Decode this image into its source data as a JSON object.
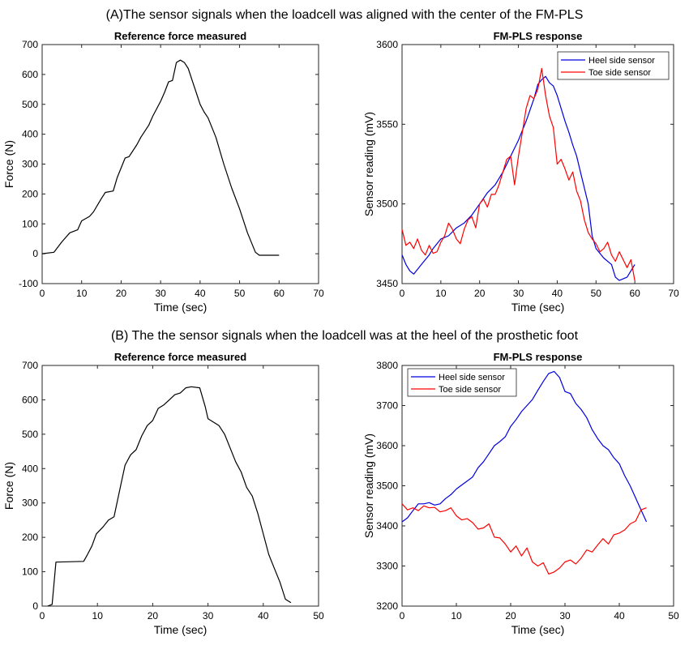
{
  "section_titles": {
    "a": "(A)The sensor signals when the loadcell was aligned with the center of the FM-PLS",
    "b": "(B) The the sensor signals when the loadcell was at the heel of the prosthetic foot"
  },
  "colors": {
    "force": "#000000",
    "heel": "#0000e0",
    "toe": "#ff0000"
  },
  "chart_data": [
    {
      "id": "a-force",
      "type": "line",
      "title": "Reference force measured",
      "xlabel": "Time (sec)",
      "ylabel": "Force (N)",
      "xlim": [
        0,
        70
      ],
      "ylim": [
        -100,
        700
      ],
      "xticks": [
        0,
        10,
        20,
        30,
        40,
        50,
        60,
        70
      ],
      "yticks": [
        -100,
        0,
        100,
        200,
        300,
        400,
        500,
        600,
        700
      ],
      "grid": false,
      "series": [
        {
          "color": "#000000",
          "x": [
            0,
            3,
            5,
            7,
            9,
            10,
            12,
            13,
            15,
            16,
            18,
            19,
            21,
            22,
            24,
            25,
            27,
            28,
            30,
            31,
            32,
            33,
            34,
            35,
            36,
            37,
            38,
            39,
            40,
            41,
            42,
            44,
            46,
            48,
            50,
            52,
            54,
            55,
            58,
            60
          ],
          "y": [
            0,
            5,
            40,
            70,
            80,
            110,
            125,
            140,
            185,
            205,
            210,
            255,
            320,
            325,
            365,
            390,
            430,
            460,
            510,
            540,
            575,
            580,
            640,
            648,
            640,
            620,
            580,
            540,
            500,
            475,
            455,
            390,
            300,
            220,
            150,
            70,
            5,
            -5,
            -5,
            -5
          ]
        }
      ]
    },
    {
      "id": "a-plss",
      "type": "line",
      "title": "FM-PLS response",
      "xlabel": "Time (sec)",
      "ylabel": "Sensor reading (mV)",
      "xlim": [
        0,
        70
      ],
      "ylim": [
        3450,
        3600
      ],
      "xticks": [
        0,
        10,
        20,
        30,
        40,
        50,
        60,
        70
      ],
      "yticks": [
        3450,
        3500,
        3550,
        3600
      ],
      "grid": false,
      "legend": "top-right",
      "series": [
        {
          "name": "Heel side sensor",
          "color": "#0000e0",
          "x": [
            0,
            1,
            2,
            3,
            5,
            7,
            8,
            10,
            12,
            14,
            16,
            18,
            20,
            22,
            24,
            26,
            28,
            30,
            32,
            34,
            35,
            36,
            37,
            38,
            39,
            40,
            41,
            42,
            43,
            44,
            45,
            46,
            47,
            48,
            49,
            50,
            52,
            54,
            55,
            56,
            58,
            60
          ],
          "y": [
            3468,
            3462,
            3458,
            3456,
            3462,
            3468,
            3472,
            3478,
            3480,
            3485,
            3488,
            3493,
            3500,
            3507,
            3512,
            3520,
            3530,
            3540,
            3552,
            3566,
            3575,
            3578,
            3580,
            3576,
            3574,
            3568,
            3560,
            3552,
            3545,
            3537,
            3530,
            3520,
            3510,
            3500,
            3480,
            3472,
            3466,
            3462,
            3454,
            3452,
            3454,
            3462
          ]
        },
        {
          "name": "Toe side sensor",
          "color": "#ff0000",
          "x": [
            0,
            1,
            2,
            3,
            4,
            5,
            6,
            7,
            8,
            9,
            10,
            11,
            12,
            13,
            14,
            15,
            16,
            17,
            18,
            19,
            20,
            21,
            22,
            23,
            24,
            25,
            26,
            27,
            28,
            29,
            30,
            31,
            32,
            33,
            34,
            35,
            36,
            37,
            38,
            39,
            40,
            41,
            42,
            43,
            44,
            45,
            46,
            47,
            48,
            49,
            50,
            51,
            52,
            53,
            54,
            55,
            56,
            57,
            58,
            59,
            60
          ],
          "y": [
            3484,
            3474,
            3476,
            3472,
            3478,
            3471,
            3468,
            3474,
            3469,
            3470,
            3476,
            3480,
            3488,
            3484,
            3478,
            3475,
            3484,
            3490,
            3492,
            3485,
            3500,
            3503,
            3498,
            3506,
            3506,
            3512,
            3520,
            3528,
            3530,
            3512,
            3530,
            3545,
            3560,
            3568,
            3566,
            3572,
            3585,
            3568,
            3555,
            3548,
            3525,
            3528,
            3522,
            3515,
            3520,
            3508,
            3502,
            3490,
            3482,
            3478,
            3475,
            3470,
            3472,
            3476,
            3468,
            3464,
            3470,
            3465,
            3460,
            3465,
            3452
          ]
        }
      ]
    },
    {
      "id": "b-force",
      "type": "line",
      "title": "Reference force measured",
      "xlabel": "Time (sec)",
      "ylabel": "Force (N)",
      "xlim": [
        0,
        50
      ],
      "ylim": [
        0,
        700
      ],
      "xticks": [
        0,
        10,
        20,
        30,
        40,
        50
      ],
      "yticks": [
        0,
        100,
        200,
        300,
        400,
        500,
        600,
        700
      ],
      "grid": false,
      "series": [
        {
          "color": "#000000",
          "x": [
            1,
            1.8,
            2.5,
            7.5,
            8.2,
            9,
            9.8,
            11,
            12,
            13,
            14.2,
            15,
            16,
            17,
            18,
            19,
            20,
            21,
            22,
            23,
            24,
            25,
            26,
            27,
            28.5,
            29.5,
            30,
            31,
            32,
            33,
            34,
            35,
            36,
            37,
            38,
            39,
            40,
            41,
            42,
            43,
            44,
            45
          ],
          "y": [
            0,
            5,
            128,
            130,
            150,
            175,
            210,
            230,
            250,
            260,
            350,
            410,
            440,
            455,
            495,
            525,
            540,
            575,
            585,
            600,
            615,
            620,
            635,
            638,
            635,
            580,
            545,
            535,
            525,
            500,
            460,
            420,
            390,
            345,
            320,
            270,
            210,
            150,
            110,
            70,
            20,
            10
          ]
        }
      ]
    },
    {
      "id": "b-plss",
      "type": "line",
      "title": "FM-PLS response",
      "xlabel": "Time (sec)",
      "ylabel": "Sensor reading (mV)",
      "xlim": [
        0,
        50
      ],
      "ylim": [
        3200,
        3800
      ],
      "xticks": [
        0,
        10,
        20,
        30,
        40,
        50
      ],
      "yticks": [
        3200,
        3300,
        3400,
        3500,
        3600,
        3700,
        3800
      ],
      "grid": false,
      "legend": "top-left",
      "series": [
        {
          "name": "Heel side sensor",
          "color": "#0000e0",
          "x": [
            0,
            1,
            2,
            3,
            4,
            5,
            6,
            7,
            8,
            9,
            10,
            11,
            12,
            13,
            14,
            15,
            16,
            17,
            18,
            19,
            20,
            21,
            22,
            23,
            24,
            25,
            26,
            27,
            28,
            29,
            30,
            31,
            32,
            33,
            34,
            35,
            36,
            37,
            38,
            39,
            40,
            41,
            42,
            43,
            44,
            45
          ],
          "y": [
            3410,
            3420,
            3438,
            3455,
            3455,
            3458,
            3452,
            3455,
            3468,
            3478,
            3492,
            3502,
            3512,
            3522,
            3545,
            3560,
            3580,
            3600,
            3610,
            3622,
            3648,
            3665,
            3685,
            3700,
            3715,
            3738,
            3760,
            3780,
            3785,
            3770,
            3735,
            3730,
            3705,
            3690,
            3670,
            3640,
            3618,
            3600,
            3590,
            3570,
            3555,
            3525,
            3500,
            3470,
            3440,
            3410
          ]
        },
        {
          "name": "Toe side sensor",
          "color": "#ff0000",
          "x": [
            0,
            1,
            2,
            3,
            4,
            5,
            6,
            7,
            8,
            9,
            10,
            11,
            12,
            13,
            14,
            15,
            16,
            17,
            18,
            19,
            20,
            21,
            22,
            23,
            24,
            25,
            26,
            27,
            28,
            29,
            30,
            31,
            32,
            33,
            34,
            35,
            36,
            37,
            38,
            39,
            40,
            41,
            42,
            43,
            44,
            45
          ],
          "y": [
            3455,
            3440,
            3445,
            3438,
            3450,
            3445,
            3446,
            3435,
            3438,
            3445,
            3425,
            3415,
            3418,
            3408,
            3392,
            3395,
            3405,
            3372,
            3370,
            3355,
            3335,
            3350,
            3325,
            3345,
            3310,
            3300,
            3308,
            3280,
            3285,
            3295,
            3310,
            3315,
            3305,
            3320,
            3340,
            3335,
            3352,
            3368,
            3355,
            3378,
            3382,
            3390,
            3405,
            3412,
            3440,
            3445
          ]
        }
      ]
    }
  ]
}
